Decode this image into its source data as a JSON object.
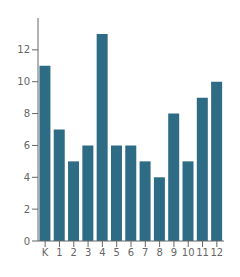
{
  "chart_data": {
    "type": "bar",
    "categories": [
      "K",
      "1",
      "2",
      "3",
      "4",
      "5",
      "6",
      "7",
      "8",
      "9",
      "10",
      "11",
      "12"
    ],
    "values": [
      11,
      7,
      5,
      6,
      13,
      6,
      6,
      5,
      4,
      8,
      5,
      9,
      10
    ],
    "color": "#2e6b85",
    "ylim": [
      0,
      14
    ],
    "yticks": [
      0,
      2,
      4,
      6,
      8,
      10,
      12
    ],
    "grid": false
  }
}
